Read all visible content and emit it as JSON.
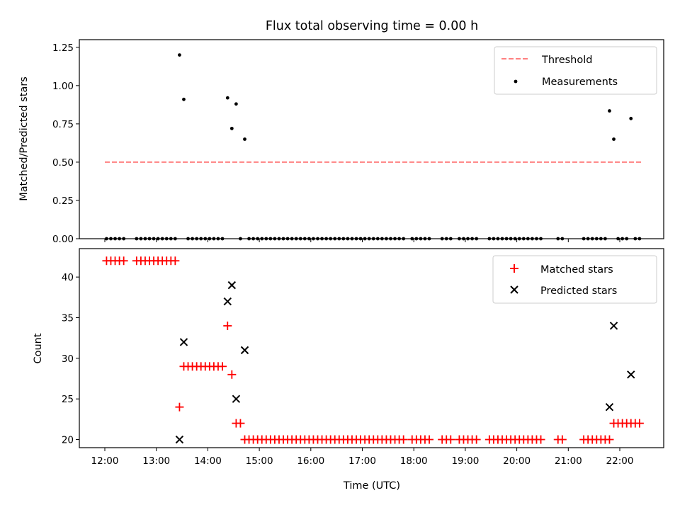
{
  "chart_data": {
    "title": "Flux total observing time = 0.00 h",
    "xlabel": "Time (UTC)",
    "x_ticks": [
      "12:00",
      "13:00",
      "14:00",
      "15:00",
      "16:00",
      "17:00",
      "18:00",
      "19:00",
      "20:00",
      "21:00",
      "22:00"
    ],
    "colors": {
      "threshold": "#ff8080",
      "measurements": "#000000",
      "matched": "#ff0000",
      "predicted": "#000000"
    },
    "panels": [
      {
        "type": "scatter",
        "ylabel": "Matched/Predicted stars",
        "ylim": [
          0,
          1.3
        ],
        "y_ticks": [
          "0.00",
          "0.25",
          "0.50",
          "0.75",
          "1.00",
          "1.25"
        ],
        "legend": {
          "position": "top-right",
          "entries": [
            "Threshold",
            "Measurements"
          ]
        },
        "series": [
          {
            "name": "Threshold",
            "style": "dashed-line",
            "x": [
              "12:00",
              "22:25"
            ],
            "y": [
              0.5,
              0.5
            ]
          },
          {
            "name": "Measurements",
            "style": "dots",
            "points": [
              [
                "13:27",
                1.2
              ],
              [
                "13:32",
                0.91
              ],
              [
                "14:23",
                0.92
              ],
              [
                "14:33",
                0.88
              ],
              [
                "14:28",
                0.72
              ],
              [
                "14:43",
                0.65
              ],
              [
                "21:48",
                0.835
              ],
              [
                "21:53",
                0.65
              ],
              [
                "22:13",
                0.785
              ],
              [
                "12:02",
                0.0
              ],
              [
                "12:07",
                0.0
              ],
              [
                "12:12",
                0.0
              ],
              [
                "12:17",
                0.0
              ],
              [
                "12:22",
                0.0
              ],
              [
                "12:37",
                0.0
              ],
              [
                "12:42",
                0.0
              ],
              [
                "12:47",
                0.0
              ],
              [
                "12:52",
                0.0
              ],
              [
                "12:57",
                0.0
              ],
              [
                "13:02",
                0.0
              ],
              [
                "13:07",
                0.0
              ],
              [
                "13:12",
                0.0
              ],
              [
                "13:17",
                0.0
              ],
              [
                "13:22",
                0.0
              ],
              [
                "13:37",
                0.0
              ],
              [
                "13:42",
                0.0
              ],
              [
                "13:47",
                0.0
              ],
              [
                "13:52",
                0.0
              ],
              [
                "13:57",
                0.0
              ],
              [
                "14:02",
                0.0
              ],
              [
                "14:07",
                0.0
              ],
              [
                "14:12",
                0.0
              ],
              [
                "14:17",
                0.0
              ],
              [
                "14:38",
                0.0
              ],
              [
                "14:48",
                0.0
              ],
              [
                "14:53",
                0.0
              ],
              [
                "14:58",
                0.0
              ],
              [
                "15:03",
                0.0
              ],
              [
                "15:08",
                0.0
              ],
              [
                "15:13",
                0.0
              ],
              [
                "15:18",
                0.0
              ],
              [
                "15:23",
                0.0
              ],
              [
                "15:28",
                0.0
              ],
              [
                "15:33",
                0.0
              ],
              [
                "15:38",
                0.0
              ],
              [
                "15:43",
                0.0
              ],
              [
                "15:48",
                0.0
              ],
              [
                "15:53",
                0.0
              ],
              [
                "15:58",
                0.0
              ],
              [
                "16:03",
                0.0
              ],
              [
                "16:08",
                0.0
              ],
              [
                "16:13",
                0.0
              ],
              [
                "16:18",
                0.0
              ],
              [
                "16:23",
                0.0
              ],
              [
                "16:28",
                0.0
              ],
              [
                "16:33",
                0.0
              ],
              [
                "16:38",
                0.0
              ],
              [
                "16:43",
                0.0
              ],
              [
                "16:48",
                0.0
              ],
              [
                "16:53",
                0.0
              ],
              [
                "16:58",
                0.0
              ],
              [
                "17:03",
                0.0
              ],
              [
                "17:08",
                0.0
              ],
              [
                "17:13",
                0.0
              ],
              [
                "17:18",
                0.0
              ],
              [
                "17:23",
                0.0
              ],
              [
                "17:28",
                0.0
              ],
              [
                "17:33",
                0.0
              ],
              [
                "17:38",
                0.0
              ],
              [
                "17:43",
                0.0
              ],
              [
                "17:48",
                0.0
              ],
              [
                "17:58",
                0.0
              ],
              [
                "18:03",
                0.0
              ],
              [
                "18:08",
                0.0
              ],
              [
                "18:13",
                0.0
              ],
              [
                "18:18",
                0.0
              ],
              [
                "18:33",
                0.0
              ],
              [
                "18:38",
                0.0
              ],
              [
                "18:43",
                0.0
              ],
              [
                "18:53",
                0.0
              ],
              [
                "18:58",
                0.0
              ],
              [
                "19:03",
                0.0
              ],
              [
                "19:08",
                0.0
              ],
              [
                "19:13",
                0.0
              ],
              [
                "19:28",
                0.0
              ],
              [
                "19:33",
                0.0
              ],
              [
                "19:38",
                0.0
              ],
              [
                "19:43",
                0.0
              ],
              [
                "19:48",
                0.0
              ],
              [
                "19:53",
                0.0
              ],
              [
                "19:58",
                0.0
              ],
              [
                "20:03",
                0.0
              ],
              [
                "20:08",
                0.0
              ],
              [
                "20:13",
                0.0
              ],
              [
                "20:18",
                0.0
              ],
              [
                "20:23",
                0.0
              ],
              [
                "20:28",
                0.0
              ],
              [
                "20:48",
                0.0
              ],
              [
                "20:53",
                0.0
              ],
              [
                "21:18",
                0.0
              ],
              [
                "21:23",
                0.0
              ],
              [
                "21:28",
                0.0
              ],
              [
                "21:33",
                0.0
              ],
              [
                "21:38",
                0.0
              ],
              [
                "21:43",
                0.0
              ],
              [
                "21:58",
                0.0
              ],
              [
                "22:03",
                0.0
              ],
              [
                "22:08",
                0.0
              ],
              [
                "22:18",
                0.0
              ],
              [
                "22:23",
                0.0
              ]
            ]
          }
        ]
      },
      {
        "type": "scatter",
        "ylabel": "Count",
        "ylim": [
          19,
          43.5
        ],
        "y_ticks": [
          "20",
          "25",
          "30",
          "35",
          "40"
        ],
        "legend": {
          "position": "top-right",
          "entries": [
            "Matched stars",
            "Predicted stars"
          ]
        },
        "series": [
          {
            "name": "Matched stars",
            "marker": "plus",
            "points": [
              [
                "12:02",
                42
              ],
              [
                "12:07",
                42
              ],
              [
                "12:12",
                42
              ],
              [
                "12:17",
                42
              ],
              [
                "12:22",
                42
              ],
              [
                "12:37",
                42
              ],
              [
                "12:42",
                42
              ],
              [
                "12:47",
                42
              ],
              [
                "12:52",
                42
              ],
              [
                "12:57",
                42
              ],
              [
                "13:02",
                42
              ],
              [
                "13:07",
                42
              ],
              [
                "13:12",
                42
              ],
              [
                "13:17",
                42
              ],
              [
                "13:22",
                42
              ],
              [
                "13:27",
                24
              ],
              [
                "13:32",
                29
              ],
              [
                "13:37",
                29
              ],
              [
                "13:42",
                29
              ],
              [
                "13:47",
                29
              ],
              [
                "13:52",
                29
              ],
              [
                "13:57",
                29
              ],
              [
                "14:02",
                29
              ],
              [
                "14:07",
                29
              ],
              [
                "14:12",
                29
              ],
              [
                "14:17",
                29
              ],
              [
                "14:23",
                34
              ],
              [
                "14:28",
                28
              ],
              [
                "14:33",
                22
              ],
              [
                "14:38",
                22
              ],
              [
                "14:43",
                20
              ],
              [
                "14:48",
                20
              ],
              [
                "14:53",
                20
              ],
              [
                "14:58",
                20
              ],
              [
                "15:03",
                20
              ],
              [
                "15:08",
                20
              ],
              [
                "15:13",
                20
              ],
              [
                "15:18",
                20
              ],
              [
                "15:23",
                20
              ],
              [
                "15:28",
                20
              ],
              [
                "15:33",
                20
              ],
              [
                "15:38",
                20
              ],
              [
                "15:43",
                20
              ],
              [
                "15:48",
                20
              ],
              [
                "15:53",
                20
              ],
              [
                "15:58",
                20
              ],
              [
                "16:03",
                20
              ],
              [
                "16:08",
                20
              ],
              [
                "16:13",
                20
              ],
              [
                "16:18",
                20
              ],
              [
                "16:23",
                20
              ],
              [
                "16:28",
                20
              ],
              [
                "16:33",
                20
              ],
              [
                "16:38",
                20
              ],
              [
                "16:43",
                20
              ],
              [
                "16:48",
                20
              ],
              [
                "16:53",
                20
              ],
              [
                "16:58",
                20
              ],
              [
                "17:03",
                20
              ],
              [
                "17:08",
                20
              ],
              [
                "17:13",
                20
              ],
              [
                "17:18",
                20
              ],
              [
                "17:23",
                20
              ],
              [
                "17:28",
                20
              ],
              [
                "17:33",
                20
              ],
              [
                "17:38",
                20
              ],
              [
                "17:43",
                20
              ],
              [
                "17:48",
                20
              ],
              [
                "17:58",
                20
              ],
              [
                "18:03",
                20
              ],
              [
                "18:08",
                20
              ],
              [
                "18:13",
                20
              ],
              [
                "18:18",
                20
              ],
              [
                "18:33",
                20
              ],
              [
                "18:38",
                20
              ],
              [
                "18:43",
                20
              ],
              [
                "18:53",
                20
              ],
              [
                "18:58",
                20
              ],
              [
                "19:03",
                20
              ],
              [
                "19:08",
                20
              ],
              [
                "19:13",
                20
              ],
              [
                "19:28",
                20
              ],
              [
                "19:33",
                20
              ],
              [
                "19:38",
                20
              ],
              [
                "19:43",
                20
              ],
              [
                "19:48",
                20
              ],
              [
                "19:53",
                20
              ],
              [
                "19:58",
                20
              ],
              [
                "20:03",
                20
              ],
              [
                "20:08",
                20
              ],
              [
                "20:13",
                20
              ],
              [
                "20:18",
                20
              ],
              [
                "20:23",
                20
              ],
              [
                "20:28",
                20
              ],
              [
                "20:48",
                20
              ],
              [
                "20:53",
                20
              ],
              [
                "21:18",
                20
              ],
              [
                "21:23",
                20
              ],
              [
                "21:28",
                20
              ],
              [
                "21:33",
                20
              ],
              [
                "21:38",
                20
              ],
              [
                "21:43",
                20
              ],
              [
                "21:48",
                20
              ],
              [
                "21:53",
                22
              ],
              [
                "21:58",
                22
              ],
              [
                "22:03",
                22
              ],
              [
                "22:08",
                22
              ],
              [
                "22:13",
                22
              ],
              [
                "22:18",
                22
              ],
              [
                "22:23",
                22
              ]
            ]
          },
          {
            "name": "Predicted stars",
            "marker": "x",
            "points": [
              [
                "13:27",
                20
              ],
              [
                "13:32",
                32
              ],
              [
                "14:23",
                37
              ],
              [
                "14:28",
                39
              ],
              [
                "14:33",
                25
              ],
              [
                "14:43",
                31
              ],
              [
                "21:48",
                24
              ],
              [
                "21:53",
                34
              ],
              [
                "22:13",
                28
              ]
            ]
          }
        ]
      }
    ]
  }
}
